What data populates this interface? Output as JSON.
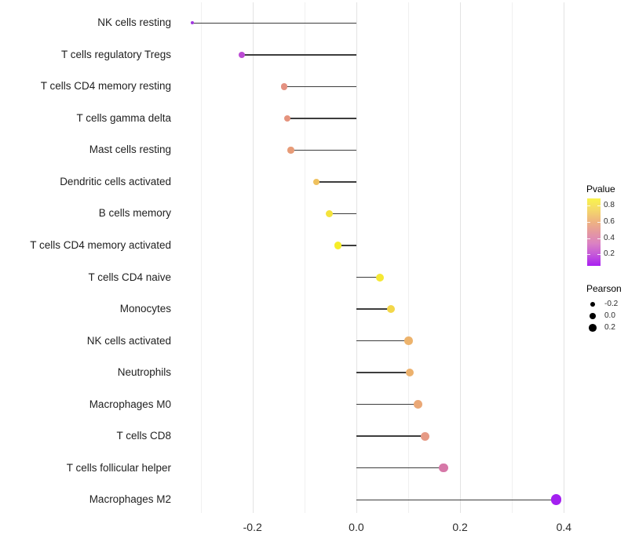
{
  "chart_data": {
    "type": "scatter",
    "subtype": "horizontal-lollipop",
    "title": "",
    "xlabel": "",
    "ylabel": "",
    "x_axis": {
      "range": [
        -0.34,
        0.51
      ],
      "major_ticks": [
        {
          "value": -0.2,
          "label": "-0.2"
        },
        {
          "value": 0.0,
          "label": "0.0"
        },
        {
          "value": 0.2,
          "label": "0.2"
        },
        {
          "value": 0.4,
          "label": "0.4"
        }
      ],
      "minor_ticks": [
        -0.3,
        -0.1,
        0.1,
        0.3
      ],
      "grid": true
    },
    "categories": [
      "NK cells resting",
      "T cells regulatory  Tregs",
      "T cells CD4 memory resting",
      "T cells gamma delta",
      "Mast cells resting",
      "Dendritic cells activated",
      "B cells memory",
      "T cells CD4 memory activated",
      "T cells CD4 naive",
      "Monocytes",
      "NK cells activated",
      "Neutrophils",
      "Macrophages M0",
      "T cells CD8",
      "T cells follicular helper",
      "Macrophages M2"
    ],
    "points": [
      {
        "label": "NK cells resting",
        "pearson": -0.316,
        "dot_color": "#A238E0",
        "dot_radius": 1.9
      },
      {
        "label": "T cells regulatory  Tregs",
        "pearson": -0.221,
        "dot_color": "#BC4BD4",
        "dot_radius": 4.0
      },
      {
        "label": "T cells CD4 memory resting",
        "pearson": -0.139,
        "dot_color": "#E49181",
        "dot_radius": 4.2
      },
      {
        "label": "T cells gamma delta",
        "pearson": -0.133,
        "dot_color": "#E5937D",
        "dot_radius": 4.2
      },
      {
        "label": "Mast cells resting",
        "pearson": -0.126,
        "dot_color": "#E79B77",
        "dot_radius": 4.2
      },
      {
        "label": "Dendritic cells activated",
        "pearson": -0.077,
        "dot_color": "#EFC15E",
        "dot_radius": 4.4
      },
      {
        "label": "B cells memory",
        "pearson": -0.052,
        "dot_color": "#F4E33C",
        "dot_radius": 4.5
      },
      {
        "label": "T cells CD4 memory activated",
        "pearson": -0.035,
        "dot_color": "#F6ED28",
        "dot_radius": 4.6
      },
      {
        "label": "T cells CD4 naive",
        "pearson": 0.046,
        "dot_color": "#F5E834",
        "dot_radius": 5.0
      },
      {
        "label": "Monocytes",
        "pearson": 0.067,
        "dot_color": "#F3D74A",
        "dot_radius": 5.1
      },
      {
        "label": "NK cells activated",
        "pearson": 0.101,
        "dot_color": "#EDB36C",
        "dot_radius": 5.3
      },
      {
        "label": "Neutrophils",
        "pearson": 0.103,
        "dot_color": "#ECB16D",
        "dot_radius": 5.3
      },
      {
        "label": "Macrophages M0",
        "pearson": 0.119,
        "dot_color": "#EAA877",
        "dot_radius": 5.4
      },
      {
        "label": "T cells CD8",
        "pearson": 0.133,
        "dot_color": "#E69A85",
        "dot_radius": 5.6
      },
      {
        "label": "T cells follicular helper",
        "pearson": 0.168,
        "dot_color": "#D678A8",
        "dot_radius": 5.7
      },
      {
        "label": "Macrophages M2",
        "pearson": 0.385,
        "dot_color": "#A320F0",
        "dot_radius": 6.8
      }
    ],
    "legend": {
      "position": "right",
      "pvalue": {
        "title": "Pvalue",
        "tick_labels": [
          "0.8",
          "0.6",
          "0.4",
          "0.2"
        ],
        "gradient_top_to_bottom": [
          "#F9F34C",
          "#F4D96A",
          "#EFB57F",
          "#E5999F",
          "#DB82C2",
          "#C458D9",
          "#A91FF2"
        ]
      },
      "pearson": {
        "title": "Pearson",
        "items": [
          {
            "label": "-0.2",
            "radius": 2.9
          },
          {
            "label": "0.0",
            "radius": 3.9
          },
          {
            "label": "0.2",
            "radius": 4.9
          }
        ],
        "key_color": "#000000"
      }
    },
    "style": {
      "background": "#FFFFFF",
      "stem_color": "#3D3D3D",
      "grid_major_color": "#E3E3E3",
      "grid_minor_color": "#F0F0F0",
      "axis_text_color": "#2B2B2B",
      "category_text_color": "#1F1F1F"
    }
  }
}
